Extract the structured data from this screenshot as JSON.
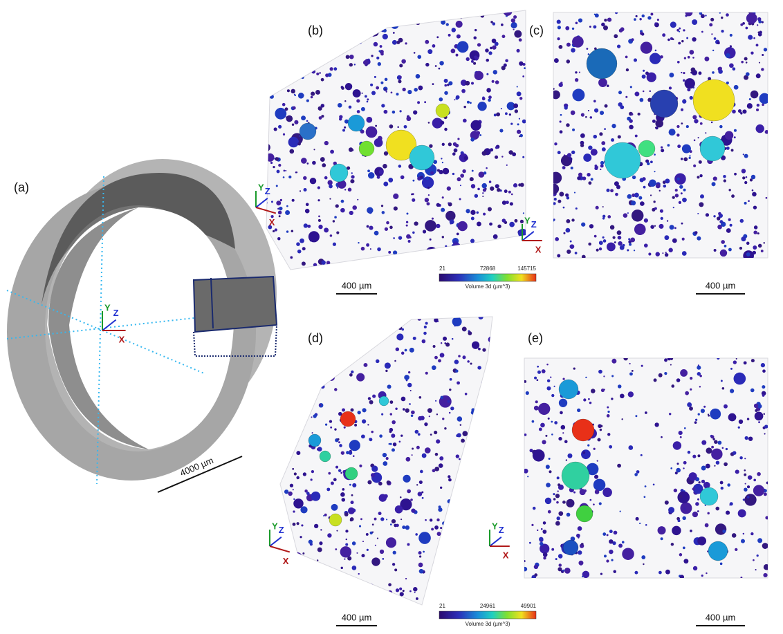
{
  "panels": [
    {
      "label": "(a)",
      "axes": {
        "y": "Y",
        "z": "Z",
        "x": "X"
      },
      "scale_bar": "4000 µm"
    },
    {
      "label": "(b)",
      "axes": {
        "y": "Y",
        "z": "Z",
        "x": "X"
      },
      "scale_bar": "400 µm"
    },
    {
      "label": "(c)",
      "axes": {
        "y": "Y",
        "z": "Z",
        "x": "X"
      },
      "scale_bar": "400 µm"
    },
    {
      "label": "(d)",
      "axes": {
        "y": "Y",
        "z": "Z",
        "x": "X"
      },
      "scale_bar": "400 µm"
    },
    {
      "label": "(e)",
      "axes": {
        "y": "Y",
        "z": "Z",
        "x": "X"
      },
      "scale_bar": "400 µm"
    }
  ],
  "colorbars": [
    {
      "ticks": [
        21,
        72868,
        145715
      ],
      "title": "Volume 3d (µm^3)"
    },
    {
      "ticks": [
        21,
        24961,
        49901
      ],
      "title": "Volume 3d (µm^3)"
    }
  ]
}
